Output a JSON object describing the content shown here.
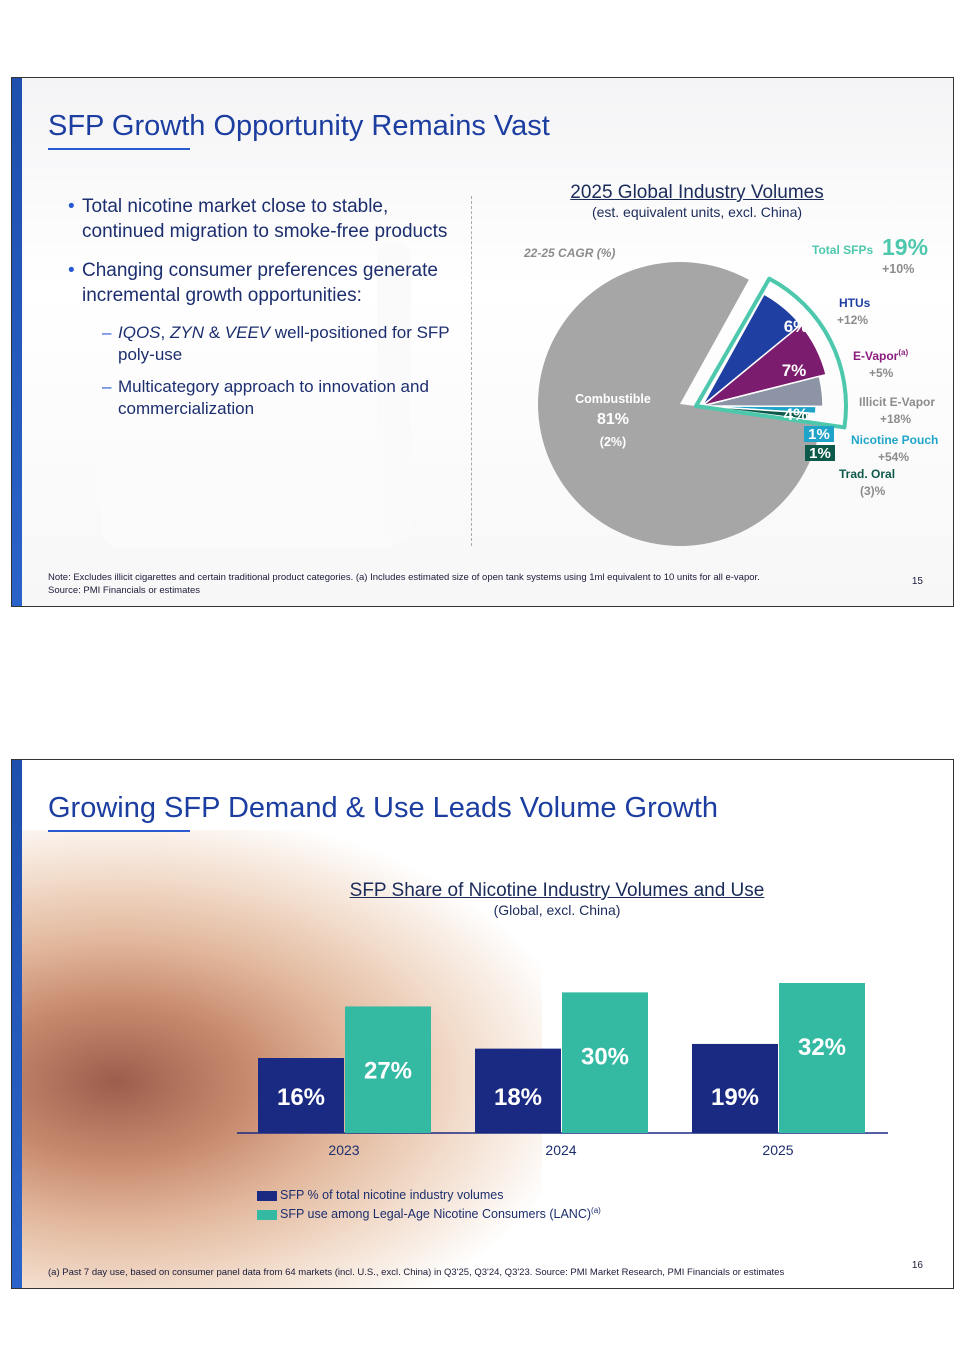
{
  "slide1": {
    "title": "SFP Growth Opportunity Remains Vast",
    "bullets": [
      "Total nicotine market close to stable, continued migration to smoke-free products",
      "Changing consumer preferences generate incremental growth opportunities:"
    ],
    "sub1_brands": [
      "IQOS",
      "ZYN",
      "VEEV"
    ],
    "sub1_rest": " well-positioned for SFP poly-use",
    "sub1_sep1": ", ",
    "sub1_sep2": " & ",
    "sub2": "Multicategory approach to innovation and commercialization",
    "note1": "Note: Excludes illicit cigarettes and certain traditional product categories. (a) Includes estimated size of open tank systems using 1ml equivalent to 10 units for all e-vapor.",
    "note2": "Source: PMI Financials or estimates",
    "page": "15"
  },
  "slide2": {
    "title": "Growing SFP Demand & Use Leads Volume Growth",
    "note": "(a) Past 7 day use, based on consumer panel data from 64 markets (incl. U.S., excl. China) in Q3'25, Q3'24, Q3'23. Source: PMI Market Research, PMI Financials or estimates",
    "page": "16"
  },
  "chart_data": [
    {
      "type": "pie",
      "title": "2025 Global Industry Volumes",
      "subtitle": "(est. equivalent units, excl. China)",
      "cagr_label": "22-25 CAGR (%)",
      "total": {
        "name": "Total SFPs",
        "value": "19%",
        "cagr": "+10%"
      },
      "slices": [
        {
          "name": "Combustible",
          "value": 81,
          "label": "81%",
          "cagr": "(2%)",
          "color": "#a6a6a6",
          "text": "#ffffff"
        },
        {
          "name": "HTUs",
          "value": 6,
          "label": "6%",
          "cagr": "+12%",
          "color": "#1f3fa2",
          "text": "#1f3fa2"
        },
        {
          "name": "E-Vapor",
          "sup": "(a)",
          "value": 7,
          "label": "7%",
          "cagr": "+5%",
          "color": "#7c1c6e",
          "text": "#8a1c7c"
        },
        {
          "name": "Illicit E-Vapor",
          "value": 4,
          "label": "4%",
          "cagr": "+18%",
          "color": "#8c94a6",
          "text": "#7f7f7f"
        },
        {
          "name": "Nicotine Pouch",
          "value": 1,
          "label": "1%",
          "cagr": "+54%",
          "color": "#20a3c8",
          "text": "#1fa5c9"
        },
        {
          "name": "Trad. Oral",
          "value": 1,
          "label": "1%",
          "cagr": "(3)%",
          "color": "#0d5a4a",
          "text": "#0d5a4a"
        }
      ],
      "sfp_outline_color": "#4dc8ad"
    },
    {
      "type": "bar",
      "title": "SFP Share of Nicotine Industry Volumes and Use",
      "subtitle": "(Global, excl. China)",
      "categories": [
        "2023",
        "2024",
        "2025"
      ],
      "series": [
        {
          "name": "SFP % of total nicotine industry volumes",
          "values": [
            16,
            18,
            19
          ],
          "labels": [
            "16%",
            "18%",
            "19%"
          ],
          "color": "#1a2a82"
        },
        {
          "name": "SFP use among Legal-Age Nicotine Consumers (LANC)",
          "sup": "(a)",
          "values": [
            27,
            30,
            32
          ],
          "labels": [
            "27%",
            "30%",
            "32%"
          ],
          "color": "#34b9a2"
        }
      ],
      "ylim": [
        0,
        32
      ]
    }
  ]
}
